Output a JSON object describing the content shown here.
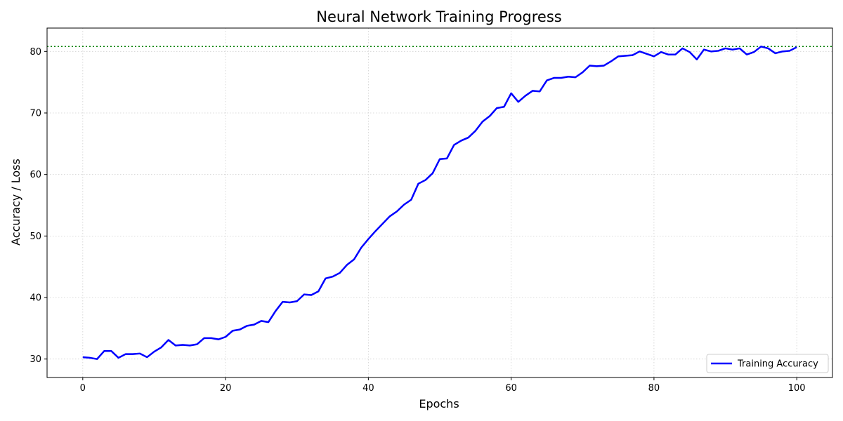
{
  "chart_data": {
    "type": "line",
    "title": "Neural Network Training Progress",
    "xlabel": "Epochs",
    "ylabel": "Accuracy / Loss",
    "xlim": [
      -5,
      105
    ],
    "ylim": [
      27,
      83.8
    ],
    "xticks": [
      0,
      20,
      40,
      60,
      80,
      100
    ],
    "yticks": [
      30,
      40,
      50,
      60,
      70,
      80
    ],
    "grid": true,
    "legend_position": "bottom-right",
    "reference_line": {
      "y": 80.8,
      "color": "#008000",
      "style": "dotted"
    },
    "series": [
      {
        "name": "Training Accuracy",
        "color": "#0000ff",
        "x": [
          0,
          1,
          2,
          3,
          4,
          5,
          6,
          7,
          8,
          9,
          10,
          11,
          12,
          13,
          14,
          15,
          16,
          17,
          18,
          19,
          20,
          21,
          22,
          23,
          24,
          25,
          26,
          27,
          28,
          29,
          30,
          31,
          32,
          33,
          34,
          35,
          36,
          37,
          38,
          39,
          40,
          41,
          42,
          43,
          44,
          45,
          46,
          47,
          48,
          49,
          50,
          51,
          52,
          53,
          54,
          55,
          56,
          57,
          58,
          59,
          60,
          61,
          62,
          63,
          64,
          65,
          66,
          67,
          68,
          69,
          70,
          71,
          72,
          73,
          74,
          75,
          76,
          77,
          78,
          79,
          80,
          81,
          82,
          83,
          84,
          85,
          86,
          87,
          88,
          89,
          90,
          91,
          92,
          93,
          94,
          95,
          96,
          97,
          98,
          99,
          100
        ],
        "values": [
          30.3,
          30.2,
          30.0,
          31.3,
          31.3,
          30.2,
          30.8,
          30.8,
          30.9,
          30.3,
          31.2,
          31.9,
          33.1,
          32.2,
          32.3,
          32.2,
          32.4,
          33.4,
          33.4,
          33.2,
          33.6,
          34.6,
          34.8,
          35.4,
          35.6,
          36.2,
          36.0,
          37.8,
          39.3,
          39.2,
          39.4,
          40.5,
          40.4,
          41.0,
          43.1,
          43.4,
          44.0,
          45.3,
          46.2,
          48.1,
          49.5,
          50.8,
          52.0,
          53.2,
          54.0,
          55.1,
          55.9,
          58.5,
          59.1,
          60.2,
          62.5,
          62.6,
          64.8,
          65.5,
          66.0,
          67.1,
          68.6,
          69.5,
          70.8,
          71.0,
          73.2,
          71.8,
          72.8,
          73.6,
          73.5,
          75.3,
          75.7,
          75.7,
          75.9,
          75.8,
          76.6,
          77.7,
          77.6,
          77.7,
          78.4,
          79.2,
          79.3,
          79.4,
          80.0,
          79.6,
          79.2,
          79.9,
          79.5,
          79.5,
          80.5,
          79.9,
          78.7,
          80.3,
          80.0,
          80.1,
          80.5,
          80.3,
          80.5,
          79.5,
          79.9,
          80.8,
          80.5,
          79.7,
          80.0,
          80.1,
          80.7
        ]
      }
    ]
  }
}
